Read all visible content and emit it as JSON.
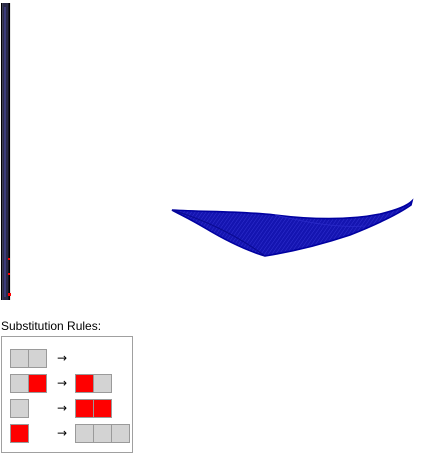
{
  "rules_label": "Substitution Rules:",
  "colors": {
    "gray": "#d3d3d3",
    "red": "#ff0000",
    "cell_border": "#9a9a9a",
    "surface": "#1010a8"
  },
  "rules": [
    {
      "lhs": [
        "gray",
        "gray"
      ],
      "arrow": "→",
      "rhs": []
    },
    {
      "lhs": [
        "gray",
        "red"
      ],
      "arrow": "→",
      "rhs": [
        "red",
        "gray"
      ]
    },
    {
      "lhs": [
        "gray"
      ],
      "arrow": "→",
      "rhs": [
        "red",
        "red"
      ]
    },
    {
      "lhs": [
        "red"
      ],
      "arrow": "→",
      "rhs": [
        "gray",
        "gray",
        "gray"
      ]
    }
  ],
  "icons": {
    "history": "evolution-history-strip",
    "plot": "3d-surface-plot"
  }
}
